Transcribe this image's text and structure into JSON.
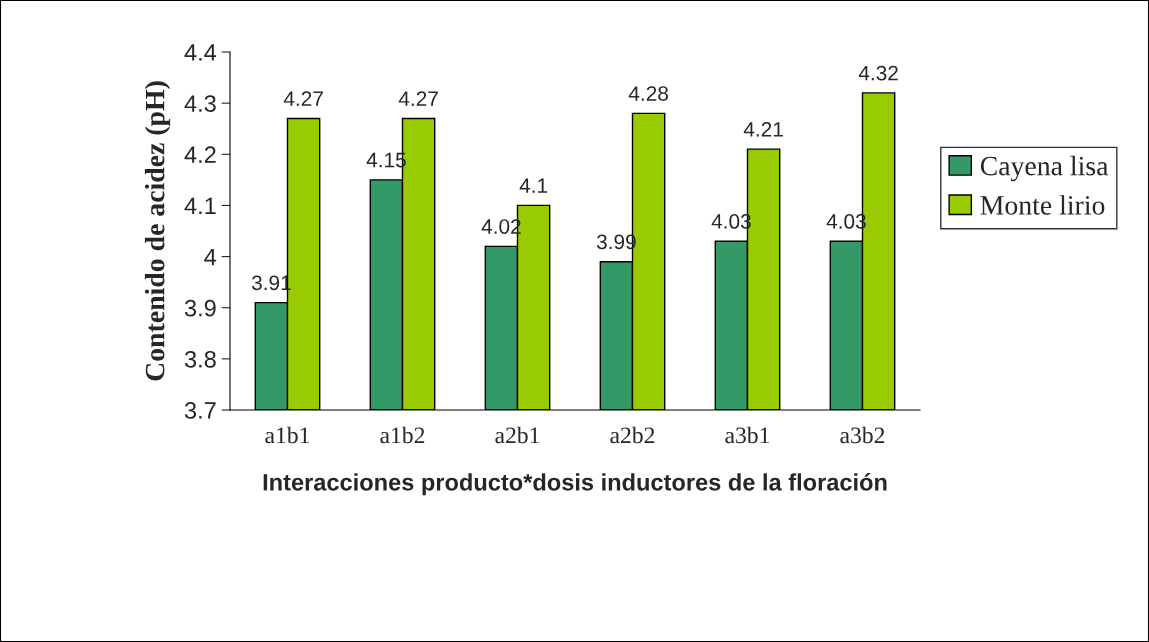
{
  "chart_data": {
    "type": "bar",
    "xlabel": "Interacciones producto*dosis inductores de la floración",
    "ylabel": "Contenido de acidez (pH)",
    "categories": [
      "a1b1",
      "a1b2",
      "a2b1",
      "a2b2",
      "a3b1",
      "a3b2"
    ],
    "series": [
      {
        "name": "Cayena lisa",
        "color": "#339966",
        "values": [
          3.91,
          4.15,
          4.02,
          3.99,
          4.03,
          4.03
        ]
      },
      {
        "name": "Monte lirio",
        "color": "#99cc00",
        "values": [
          4.27,
          4.27,
          4.1,
          4.28,
          4.21,
          4.32
        ]
      }
    ],
    "ylim": [
      3.7,
      4.4
    ],
    "yticks": [
      3.7,
      3.8,
      3.9,
      4,
      4.1,
      4.2,
      4.3,
      4.4
    ],
    "grid": false,
    "legend": "right",
    "data_labels": true
  }
}
